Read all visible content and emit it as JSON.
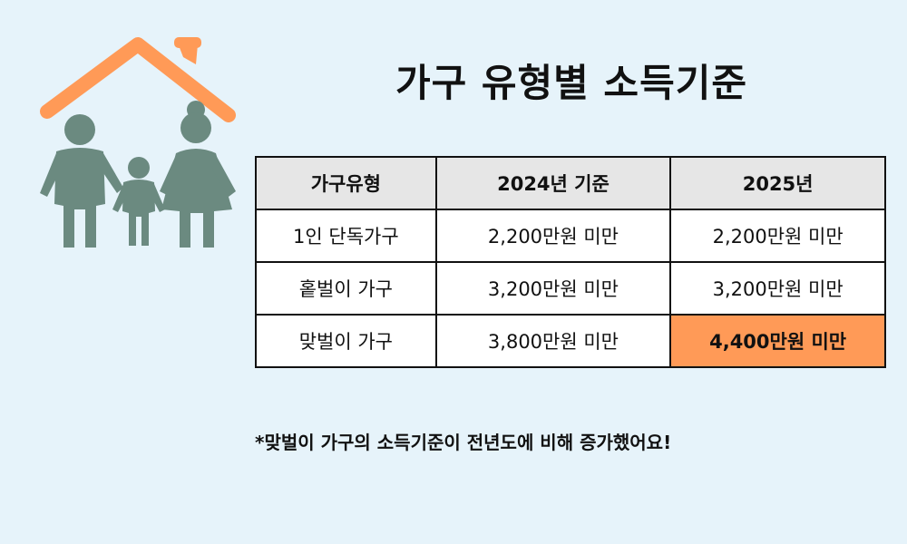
{
  "title": "가구 유형별 소득기준",
  "table": {
    "headers": [
      "가구유형",
      "2024년 기준",
      "2025년"
    ],
    "rows": [
      [
        "1인 단독가구",
        "2,200만원 미만",
        "2,200만원 미만"
      ],
      [
        "홑벌이 가구",
        "3,200만원 미만",
        "3,200만원 미만"
      ],
      [
        "맞벌이 가구",
        "3,800만원 미만",
        "4,400만원 미만"
      ]
    ]
  },
  "note": "*맞벌이 가구의 소득기준이 전년도에 비해 증가했어요!",
  "colors": {
    "background": "#e6f3fa",
    "roof": "#ff9a57",
    "family": "#6b8a80",
    "header_bg": "#e6e6e6",
    "highlight": "#ff9a57"
  }
}
